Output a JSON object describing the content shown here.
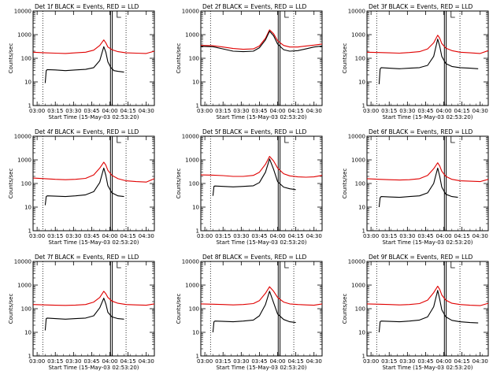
{
  "figure": {
    "xlabel": "Start Time (15-May-03 02:53:20)",
    "ylabel": "Counts/sec",
    "x_tick_labels": [
      "03:00",
      "03:15",
      "03:30",
      "03:45",
      "04:00",
      "04:15",
      "04:30"
    ],
    "y_tick_labels": [
      "1",
      "10",
      "100",
      "1000",
      "10000"
    ]
  },
  "colors": {
    "events": "#000000",
    "lld": "#e00000"
  },
  "chart_data": [
    {
      "type": "line",
      "title": "Det 1f BLACK = Events, RED = LLD",
      "xlabel": "Start Time (15-May-03 02:53:20)",
      "ylabel": "Counts/sec",
      "xlim": [
        400,
        6400
      ],
      "ylim": [
        1,
        10000
      ],
      "yscale": "log",
      "series": [
        {
          "name": "Events",
          "color": "#000000",
          "x": [
            1000,
            1050,
            1100,
            1500,
            2000,
            2500,
            3000,
            3400,
            3700,
            3900,
            4000,
            4100,
            4250,
            4400,
            4600,
            4900
          ],
          "values": [
            9,
            30,
            33,
            32,
            30,
            32,
            34,
            40,
            80,
            310,
            180,
            70,
            40,
            30,
            28,
            26
          ]
        },
        {
          "name": "LLD",
          "color": "#e00000",
          "x": [
            400,
            1000,
            1500,
            2000,
            2500,
            3000,
            3400,
            3700,
            3900,
            4000,
            4100,
            4300,
            4600,
            5000,
            5500,
            6000,
            6400
          ],
          "values": [
            180,
            170,
            165,
            160,
            170,
            180,
            220,
            350,
            600,
            450,
            300,
            230,
            190,
            170,
            165,
            160,
            200
          ]
        }
      ]
    },
    {
      "type": "line",
      "title": "Det 2f BLACK = Events, RED = LLD",
      "xlabel": "Start Time (15-May-03 02:53:20)",
      "ylabel": "Counts/sec",
      "xlim": [
        400,
        6400
      ],
      "ylim": [
        1,
        10000
      ],
      "yscale": "log",
      "series": [
        {
          "name": "Events",
          "color": "#000000",
          "x": [
            400,
            1000,
            1500,
            2000,
            2500,
            3000,
            3300,
            3600,
            3800,
            4000,
            4200,
            4500,
            4800,
            5200,
            5600,
            6000,
            6400
          ],
          "values": [
            320,
            310,
            250,
            200,
            190,
            200,
            280,
            600,
            1400,
            900,
            400,
            230,
            200,
            210,
            250,
            300,
            330
          ]
        },
        {
          "name": "LLD",
          "color": "#e00000",
          "x": [
            400,
            1000,
            1500,
            2000,
            2500,
            3000,
            3300,
            3600,
            3800,
            4000,
            4200,
            4500,
            4800,
            5200,
            5600,
            6000,
            6400
          ],
          "values": [
            350,
            340,
            300,
            260,
            240,
            250,
            330,
            700,
            1600,
            1100,
            550,
            350,
            300,
            300,
            330,
            360,
            400
          ]
        }
      ]
    },
    {
      "type": "line",
      "title": "Det 3f BLACK = Events, RED = LLD",
      "xlabel": "Start Time (15-May-03 02:53:20)",
      "ylabel": "Counts/sec",
      "xlim": [
        400,
        6400
      ],
      "ylim": [
        1,
        10000
      ],
      "yscale": "log",
      "series": [
        {
          "name": "Events",
          "color": "#000000",
          "x": [
            1000,
            1050,
            1100,
            1500,
            2000,
            2500,
            3000,
            3400,
            3700,
            3900,
            4000,
            4100,
            4300,
            4600,
            5000,
            5500,
            5900
          ],
          "values": [
            8,
            35,
            40,
            38,
            36,
            38,
            40,
            50,
            120,
            650,
            320,
            120,
            60,
            45,
            40,
            38,
            36
          ]
        },
        {
          "name": "LLD",
          "color": "#e00000",
          "x": [
            400,
            1000,
            1500,
            2000,
            2500,
            3000,
            3400,
            3700,
            3900,
            4000,
            4100,
            4300,
            4600,
            5000,
            5500,
            6000,
            6400
          ],
          "values": [
            180,
            175,
            170,
            165,
            175,
            190,
            250,
            450,
            950,
            700,
            420,
            270,
            210,
            180,
            170,
            160,
            210
          ]
        }
      ]
    },
    {
      "type": "line",
      "title": "Det 4f BLACK = Events, RED = LLD",
      "xlabel": "Start Time (15-May-03 02:53:20)",
      "ylabel": "Counts/sec",
      "xlim": [
        400,
        6400
      ],
      "ylim": [
        1,
        10000
      ],
      "yscale": "log",
      "series": [
        {
          "name": "Events",
          "color": "#000000",
          "x": [
            1000,
            1050,
            1100,
            1500,
            2000,
            2500,
            3000,
            3400,
            3700,
            3900,
            4000,
            4100,
            4300,
            4600,
            4900
          ],
          "values": [
            12,
            28,
            30,
            29,
            28,
            30,
            33,
            45,
            110,
            450,
            220,
            80,
            40,
            30,
            28
          ]
        },
        {
          "name": "LLD",
          "color": "#e00000",
          "x": [
            400,
            1000,
            1500,
            2000,
            2500,
            3000,
            3400,
            3700,
            3900,
            4000,
            4100,
            4300,
            4600,
            5000,
            5500,
            6000,
            6400
          ],
          "values": [
            170,
            160,
            150,
            145,
            150,
            165,
            230,
            450,
            800,
            600,
            360,
            220,
            160,
            130,
            120,
            115,
            160
          ]
        }
      ]
    },
    {
      "type": "line",
      "title": "Det 5f BLACK = Events, RED = LLD",
      "xlabel": "Start Time (15-May-03 02:53:20)",
      "ylabel": "Counts/sec",
      "xlim": [
        400,
        6400
      ],
      "ylim": [
        1,
        10000
      ],
      "yscale": "log",
      "series": [
        {
          "name": "Events",
          "color": "#000000",
          "x": [
            1000,
            1050,
            1100,
            1500,
            2000,
            2500,
            3000,
            3300,
            3600,
            3800,
            4000,
            4200,
            4500,
            4800,
            5100
          ],
          "values": [
            30,
            75,
            78,
            75,
            72,
            75,
            80,
            110,
            300,
            1100,
            400,
            120,
            70,
            60,
            55
          ]
        },
        {
          "name": "LLD",
          "color": "#e00000",
          "x": [
            400,
            1000,
            1500,
            2000,
            2500,
            3000,
            3300,
            3600,
            3800,
            4000,
            4200,
            4500,
            4800,
            5200,
            5600,
            6000,
            6400
          ],
          "values": [
            230,
            225,
            215,
            200,
            200,
            220,
            300,
            650,
            1400,
            900,
            450,
            260,
            210,
            190,
            185,
            190,
            220
          ]
        }
      ]
    },
    {
      "type": "line",
      "title": "Det 6f BLACK = Events, RED = LLD",
      "xlabel": "Start Time (15-May-03 02:53:20)",
      "ylabel": "Counts/sec",
      "xlim": [
        400,
        6400
      ],
      "ylim": [
        1,
        10000
      ],
      "yscale": "log",
      "series": [
        {
          "name": "Events",
          "color": "#000000",
          "x": [
            1000,
            1050,
            1100,
            1500,
            2000,
            2500,
            3000,
            3400,
            3700,
            3900,
            4000,
            4100,
            4300,
            4600,
            4900
          ],
          "values": [
            10,
            25,
            28,
            27,
            26,
            28,
            30,
            40,
            100,
            450,
            200,
            70,
            35,
            28,
            26
          ]
        },
        {
          "name": "LLD",
          "color": "#e00000",
          "x": [
            400,
            1000,
            1500,
            2000,
            2500,
            3000,
            3400,
            3700,
            3900,
            4000,
            4100,
            4300,
            4600,
            5000,
            5500,
            6000,
            6400
          ],
          "values": [
            160,
            150,
            145,
            140,
            145,
            160,
            220,
            420,
            750,
            550,
            330,
            200,
            150,
            130,
            125,
            120,
            150
          ]
        }
      ]
    },
    {
      "type": "line",
      "title": "Det 7f BLACK = Events, RED = LLD",
      "xlabel": "Start Time (15-May-03 02:53:20)",
      "ylabel": "Counts/sec",
      "xlim": [
        400,
        6400
      ],
      "ylim": [
        1,
        10000
      ],
      "yscale": "log",
      "series": [
        {
          "name": "Events",
          "color": "#000000",
          "x": [
            1000,
            1050,
            1100,
            1500,
            2000,
            2500,
            3000,
            3400,
            3700,
            3900,
            4000,
            4100,
            4300,
            4600,
            4900
          ],
          "values": [
            12,
            38,
            40,
            38,
            36,
            38,
            40,
            50,
            110,
            280,
            160,
            70,
            45,
            38,
            36
          ]
        },
        {
          "name": "LLD",
          "color": "#e00000",
          "x": [
            400,
            1000,
            1500,
            2000,
            2500,
            3000,
            3400,
            3700,
            3900,
            4000,
            4100,
            4300,
            4600,
            5000,
            5500,
            6000,
            6400
          ],
          "values": [
            150,
            145,
            140,
            138,
            142,
            150,
            190,
            300,
            550,
            430,
            300,
            210,
            170,
            150,
            145,
            140,
            160
          ]
        }
      ]
    },
    {
      "type": "line",
      "title": "Det 8f BLACK = Events, RED = LLD",
      "xlabel": "Start Time (15-May-03 02:53:20)",
      "ylabel": "Counts/sec",
      "xlim": [
        400,
        6400
      ],
      "ylim": [
        1,
        10000
      ],
      "yscale": "log",
      "series": [
        {
          "name": "Events",
          "color": "#000000",
          "x": [
            1000,
            1050,
            1100,
            1500,
            2000,
            2500,
            3000,
            3300,
            3600,
            3800,
            4000,
            4200,
            4500,
            4800,
            5100
          ],
          "values": [
            10,
            28,
            30,
            29,
            28,
            30,
            33,
            50,
            150,
            550,
            180,
            60,
            35,
            28,
            26
          ]
        },
        {
          "name": "LLD",
          "color": "#e00000",
          "x": [
            400,
            1000,
            1500,
            2000,
            2500,
            3000,
            3300,
            3600,
            3800,
            4000,
            4200,
            4500,
            4800,
            5200,
            5600,
            6000,
            6400
          ],
          "values": [
            160,
            155,
            150,
            145,
            150,
            165,
            220,
            450,
            850,
            550,
            300,
            190,
            160,
            150,
            145,
            140,
            160
          ]
        }
      ]
    },
    {
      "type": "line",
      "title": "Det 9f BLACK = Events, RED = LLD",
      "xlabel": "Start Time (15-May-03 02:53:20)",
      "ylabel": "Counts/sec",
      "xlim": [
        400,
        6400
      ],
      "ylim": [
        1,
        10000
      ],
      "yscale": "log",
      "series": [
        {
          "name": "Events",
          "color": "#000000",
          "x": [
            1000,
            1050,
            1100,
            1500,
            2000,
            2500,
            3000,
            3400,
            3700,
            3900,
            4000,
            4100,
            4300,
            4600,
            5000,
            5500,
            5900
          ],
          "values": [
            10,
            28,
            30,
            29,
            28,
            30,
            33,
            45,
            120,
            600,
            250,
            90,
            45,
            32,
            28,
            26,
            25
          ]
        },
        {
          "name": "LLD",
          "color": "#e00000",
          "x": [
            400,
            1000,
            1500,
            2000,
            2500,
            3000,
            3400,
            3700,
            3900,
            4000,
            4100,
            4300,
            4600,
            5000,
            5500,
            6000,
            6400
          ],
          "values": [
            160,
            155,
            150,
            145,
            150,
            165,
            230,
            480,
            900,
            650,
            380,
            230,
            170,
            150,
            140,
            135,
            170
          ]
        }
      ]
    }
  ]
}
